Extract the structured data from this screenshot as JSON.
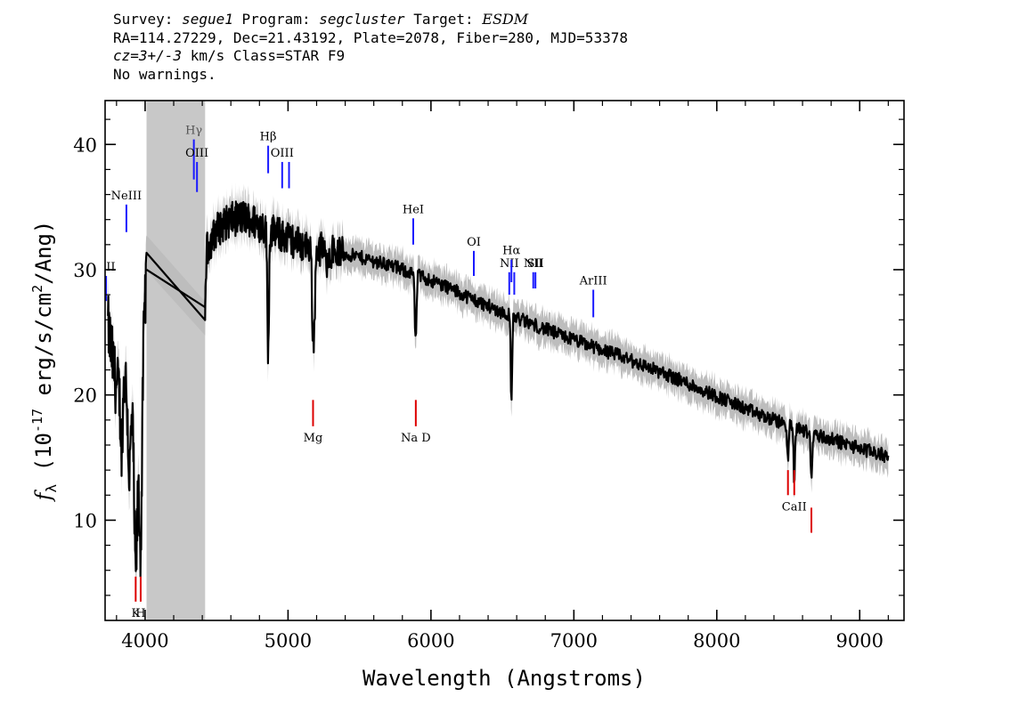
{
  "header": {
    "line1": {
      "survey_label": "Survey:",
      "survey": "segue1",
      "program_label": "Program:",
      "program": "segcluster",
      "target_label": "Target:",
      "target": "ESDM"
    },
    "line2": "RA=114.27229, Dec=21.43192, Plate=2078, Fiber=280, MJD=53378",
    "line3": {
      "cz_label": "cz=3+/-3",
      "rest": " km/s Class=STAR F9"
    },
    "line4": "No warnings."
  },
  "chart_data": {
    "type": "line",
    "xlabel": "Wavelength (Angstroms)",
    "ylabel": "f_λ (10^-17 erg/s/cm^2/Ang)",
    "ylabel_parts": {
      "f": "f",
      "sub": "λ",
      "pre": " (10",
      "sup1": "-17",
      "mid": " erg/s/cm",
      "sup2": "2",
      "post": "/Ang)"
    },
    "xlim": [
      3720,
      9310
    ],
    "ylim": [
      2.0,
      43.5
    ],
    "x_ticks": [
      4000,
      5000,
      6000,
      7000,
      8000,
      9000
    ],
    "x_tick_labels": [
      "4000",
      "5000",
      "6000",
      "7000",
      "8000",
      "9000"
    ],
    "y_ticks": [
      10,
      20,
      30,
      40
    ],
    "y_tick_labels": [
      "10",
      "20",
      "30",
      "40"
    ],
    "masked_region": [
      4010,
      4420
    ],
    "masked_color": "#c8c8c8",
    "spectrum_color": "#000000",
    "error_color": "#bdbdbd",
    "emission_color": "#1a1aff",
    "absorption_color": "#dd0000",
    "continuum": [
      [
        3740,
        25.5
      ],
      [
        3800,
        20.5
      ],
      [
        3860,
        21.5
      ],
      [
        3900,
        19.0
      ],
      [
        3950,
        17.0
      ],
      [
        4010,
        30.0
      ],
      [
        4420,
        27.0
      ],
      [
        4430,
        31.5
      ],
      [
        4500,
        33.2
      ],
      [
        4600,
        34.0
      ],
      [
        4700,
        34.2
      ],
      [
        4800,
        33.6
      ],
      [
        4900,
        33.0
      ],
      [
        5000,
        32.5
      ],
      [
        5100,
        32.0
      ],
      [
        5300,
        31.5
      ],
      [
        5500,
        31.0
      ],
      [
        5700,
        30.4
      ],
      [
        5900,
        29.6
      ],
      [
        6100,
        28.7
      ],
      [
        6300,
        27.6
      ],
      [
        6500,
        26.6
      ],
      [
        6700,
        25.7
      ],
      [
        6900,
        24.8
      ],
      [
        7100,
        24.0
      ],
      [
        7300,
        23.2
      ],
      [
        7500,
        22.3
      ],
      [
        7700,
        21.4
      ],
      [
        7900,
        20.4
      ],
      [
        8100,
        19.4
      ],
      [
        8300,
        18.4
      ],
      [
        8500,
        17.6
      ],
      [
        8700,
        16.8
      ],
      [
        8900,
        16.1
      ],
      [
        9100,
        15.4
      ],
      [
        9200,
        15.1
      ]
    ],
    "absorption_features": [
      {
        "x": 3835,
        "depth": 5.0,
        "width": 8
      },
      {
        "x": 3889,
        "depth": 6.0,
        "width": 9
      },
      {
        "x": 3934,
        "depth": 12.0,
        "width": 10
      },
      {
        "x": 3969,
        "depth": 13.0,
        "width": 10
      },
      {
        "x": 4861,
        "depth": 9.5,
        "width": 6
      },
      {
        "x": 5172,
        "depth": 5.5,
        "width": 6
      },
      {
        "x": 5184,
        "depth": 6.0,
        "width": 6
      },
      {
        "x": 5270,
        "depth": 2.5,
        "width": 5
      },
      {
        "x": 5890,
        "depth": 3.5,
        "width": 5
      },
      {
        "x": 5896,
        "depth": 3.0,
        "width": 5
      },
      {
        "x": 6563,
        "depth": 7.0,
        "width": 5
      },
      {
        "x": 8498,
        "depth": 3.0,
        "width": 5
      },
      {
        "x": 8542,
        "depth": 4.5,
        "width": 5
      },
      {
        "x": 8662,
        "depth": 4.0,
        "width": 5
      }
    ],
    "emission_lines": [
      {
        "label": "OII",
        "x": 3727,
        "y_low": 27.5,
        "y_high": 29.5
      },
      {
        "label": "NeIII",
        "x": 3869,
        "y_low": 33.0,
        "y_high": 35.2
      },
      {
        "label": "Hγ",
        "x": 4341,
        "y_low": 37.2,
        "y_high": 40.4
      },
      {
        "label": "OIII",
        "x": 4363,
        "y_low": 36.2,
        "y_high": 38.6
      },
      {
        "label": "Hβ",
        "x": 4861,
        "y_low": 37.7,
        "y_high": 39.9
      },
      {
        "label": "OIII",
        "x": 4959,
        "y_low": 36.5,
        "y_high": 38.6
      },
      {
        "label": "",
        "x": 5007,
        "y_low": 36.5,
        "y_high": 38.6
      },
      {
        "label": "HeI",
        "x": 5876,
        "y_low": 32.0,
        "y_high": 34.1
      },
      {
        "label": "OI",
        "x": 6300,
        "y_low": 29.5,
        "y_high": 31.5
      },
      {
        "label": "NII",
        "x": 6548,
        "y_low": 28.0,
        "y_high": 29.8
      },
      {
        "label": "Hα",
        "x": 6563,
        "y_low": 29.0,
        "y_high": 30.8
      },
      {
        "label": "",
        "x": 6583,
        "y_low": 28.0,
        "y_high": 29.8
      },
      {
        "label": "NII",
        "x": 6716,
        "y_low": 28.5,
        "y_high": 29.8
      },
      {
        "label": "SII",
        "x": 6731,
        "y_low": 28.5,
        "y_high": 29.8
      },
      {
        "label": "ArIII",
        "x": 7136,
        "y_low": 26.2,
        "y_high": 28.4
      }
    ],
    "absorption_lines": [
      {
        "label": "K",
        "x": 3934,
        "y_low": 3.5,
        "y_high": 5.5
      },
      {
        "label": "H",
        "x": 3969,
        "y_low": 3.5,
        "y_high": 5.5
      },
      {
        "label": "Mg",
        "x": 5175,
        "y_low": 17.5,
        "y_high": 19.6
      },
      {
        "label": "Na D",
        "x": 5894,
        "y_low": 17.5,
        "y_high": 19.6
      },
      {
        "label": "",
        "x": 8498,
        "y_low": 12.0,
        "y_high": 14.0
      },
      {
        "label": "CaII",
        "x": 8542,
        "y_low": 12.0,
        "y_high": 14.0
      },
      {
        "label": "",
        "x": 8662,
        "y_low": 9.0,
        "y_high": 11.0
      }
    ]
  }
}
